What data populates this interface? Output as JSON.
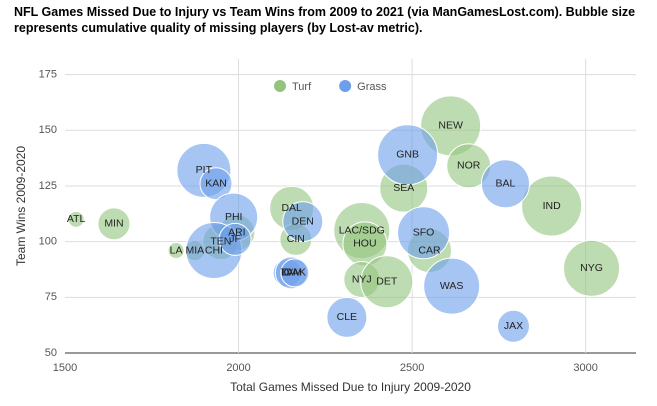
{
  "chart_data": {
    "type": "bubble",
    "title": "NFL Games Missed Due to Injury vs Team Wins from 2009 to 2021 (via ManGamesLost.com). Bubble size represents cumulative quality of missing players (by Lost-av metric).",
    "x_label": "Total Games Missed Due to Injury 2009-2020",
    "y_label": "Team Wins 2009-2020",
    "xlim": [
      1500,
      3145
    ],
    "xticks": [
      1500,
      2000,
      2500,
      3000
    ],
    "ylim": [
      50,
      182
    ],
    "yticks": [
      50,
      75,
      100,
      125,
      150,
      175
    ],
    "grid": true,
    "legend": "top",
    "series": [
      {
        "name": "Turf",
        "color": "#93c47d",
        "labels": [
          "ATL",
          "MIN",
          "ARI",
          "TEN",
          "LA",
          "MIA",
          "DAL",
          "CIN",
          "LAC/SDG",
          "HOU",
          "NYJ",
          "DET",
          "SEA",
          "CAR",
          "NEW",
          "NOR",
          "IND",
          "NYG"
        ],
        "x": [
          1532,
          1641,
          1995,
          1949,
          1820,
          1874,
          2153,
          2165,
          2355,
          2364,
          2355,
          2427,
          2476,
          2550,
          2611,
          2663,
          2902,
          3017
        ],
        "values": [
          110,
          108,
          104,
          100,
          96,
          96,
          115,
          101,
          105,
          99,
          83,
          82,
          124,
          96,
          152,
          134,
          116,
          88
        ],
        "sizes": [
          16,
          64,
          81,
          81,
          16,
          25,
          121,
          64,
          196,
          121,
          81,
          169,
          144,
          121,
          225,
          121,
          225,
          196
        ]
      },
      {
        "name": "Grass",
        "color": "#6d9eeb",
        "labels": [
          "PIT",
          "KAN",
          "PHI",
          "CHI",
          "JF",
          "DEN",
          "LV",
          "TAM",
          "OAK",
          "CLE",
          "GNB",
          "SFO",
          "WAS",
          "BAL",
          "JAX"
        ],
        "x": [
          1900,
          1935,
          1986,
          1929,
          1990,
          2185,
          2140,
          2152,
          2162,
          2312,
          2487,
          2533,
          2614,
          2769,
          2792
        ],
        "values": [
          132,
          126,
          111,
          96,
          101,
          109,
          86,
          86,
          86,
          66,
          139,
          104,
          80,
          126,
          62
        ],
        "sizes": [
          182,
          64,
          144,
          196,
          64,
          100,
          49,
          64,
          49,
          100,
          225,
          169,
          196,
          144,
          64
        ]
      }
    ]
  }
}
